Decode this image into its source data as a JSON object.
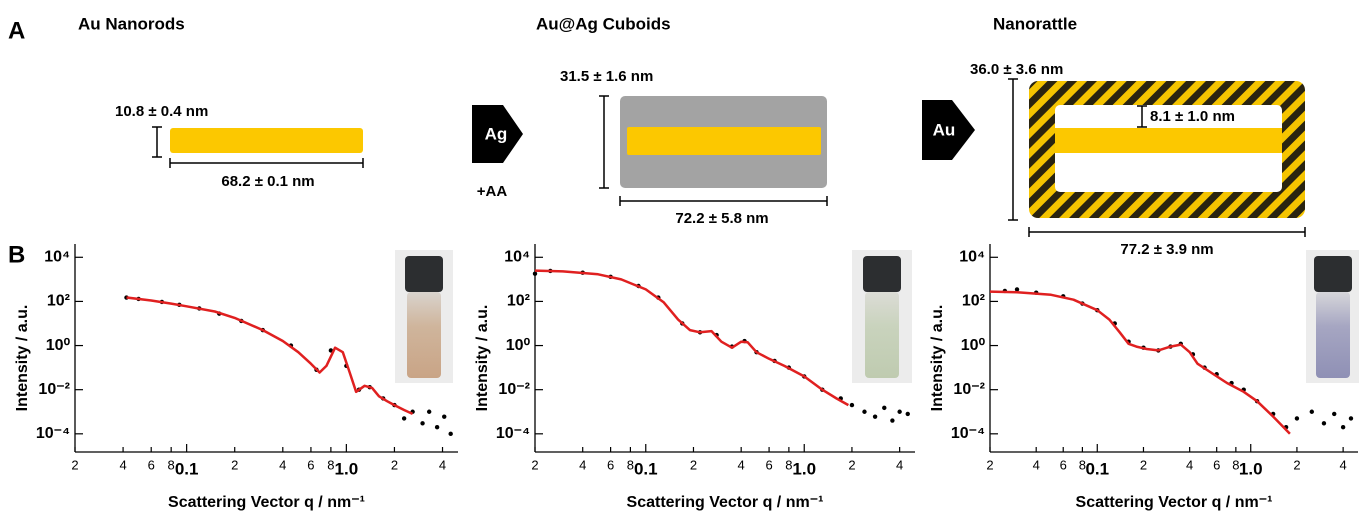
{
  "diagram": {
    "panel_label": "A",
    "steps": [
      {
        "title": "Au Nanorods",
        "height": "10.8 ± 0.4 nm",
        "length": "68.2 ± 0.1 nm"
      },
      {
        "title": "Au@Ag Cuboids",
        "height": "31.5 ± 1.6 nm",
        "length": "72.2 ± 5.8 nm"
      },
      {
        "title": "Nanorattle",
        "height": "36.0 ± 3.6 nm",
        "gap": "8.1 ± 1.0 nm",
        "length": "77.2 ± 3.9 nm"
      }
    ],
    "arrows": [
      {
        "label": "Ag",
        "note": "+AA"
      },
      {
        "label": "Au"
      }
    ],
    "panel_b_label": "B"
  },
  "chart_data": [
    {
      "type": "line",
      "xlabel": "Scattering Vector q / nm⁻¹",
      "ylabel": "Intensity / a.u.",
      "xscale": "log",
      "yscale": "log",
      "xlim": [
        0.02,
        5
      ],
      "ylim": [
        1.5e-05,
        40000
      ],
      "xticks": [
        {
          "value": 0.02,
          "label": "2"
        },
        {
          "value": 0.04,
          "label": "4"
        },
        {
          "value": 0.06,
          "label": "6"
        },
        {
          "value": 0.08,
          "label": "8"
        },
        0.1,
        {
          "value": 0.2,
          "label": "2"
        },
        {
          "value": 0.4,
          "label": "4"
        },
        {
          "value": 0.6,
          "label": "6"
        },
        {
          "value": 0.8,
          "label": "8"
        },
        {
          "value": 1,
          "label": "1.0"
        },
        {
          "value": 2,
          "label": "2"
        },
        {
          "value": 4,
          "label": "4"
        }
      ],
      "yticks": [
        {
          "value": 10000,
          "label": "10⁴"
        },
        {
          "value": 100,
          "label": "10²"
        },
        {
          "value": 1,
          "label": "10⁰"
        },
        {
          "value": 0.01,
          "label": "10⁻²"
        },
        {
          "value": 0.0001,
          "label": "10⁻⁴"
        }
      ],
      "series": [
        {
          "type": "scatter",
          "color": "#000000",
          "x": [
            0.042,
            0.05,
            0.07,
            0.09,
            0.12,
            0.16,
            0.22,
            0.3,
            0.45,
            0.65,
            0.8,
            1.0,
            1.2,
            1.4,
            1.7,
            2.0,
            2.3,
            2.6,
            3.0,
            3.3,
            3.7,
            4.1,
            4.5
          ],
          "values": [
            150,
            130,
            95,
            70,
            48,
            28,
            13,
            5,
            1,
            0.08,
            0.6,
            0.12,
            0.01,
            0.013,
            0.004,
            0.002,
            0.0005,
            0.001,
            0.0003,
            0.001,
            0.0002,
            0.0006,
            0.0001
          ]
        },
        {
          "type": "line",
          "color": "#e02020",
          "x": [
            0.042,
            0.06,
            0.08,
            0.1,
            0.15,
            0.2,
            0.3,
            0.4,
            0.5,
            0.6,
            0.68,
            0.75,
            0.85,
            0.95,
            1.05,
            1.15,
            1.3,
            1.45,
            1.6,
            1.8,
            2.0,
            2.3,
            2.6
          ],
          "values": [
            150,
            110,
            80,
            60,
            35,
            18,
            5,
            1.6,
            0.5,
            0.15,
            0.06,
            0.12,
            0.8,
            0.5,
            0.06,
            0.008,
            0.015,
            0.012,
            0.005,
            0.003,
            0.002,
            0.0012,
            0.0008
          ]
        }
      ]
    },
    {
      "type": "line",
      "xlabel": "Scattering Vector q / nm⁻¹",
      "ylabel": "Intensity / a.u.",
      "xscale": "log",
      "yscale": "log",
      "xlim": [
        0.02,
        5
      ],
      "ylim": [
        1.5e-05,
        40000
      ],
      "xticks": [
        {
          "value": 0.02,
          "label": "2"
        },
        {
          "value": 0.04,
          "label": "4"
        },
        {
          "value": 0.06,
          "label": "6"
        },
        {
          "value": 0.08,
          "label": "8"
        },
        0.1,
        {
          "value": 0.2,
          "label": "2"
        },
        {
          "value": 0.4,
          "label": "4"
        },
        {
          "value": 0.6,
          "label": "6"
        },
        {
          "value": 0.8,
          "label": "8"
        },
        {
          "value": 1,
          "label": "1.0"
        },
        {
          "value": 2,
          "label": "2"
        },
        {
          "value": 4,
          "label": "4"
        }
      ],
      "yticks": [
        {
          "value": 10000,
          "label": "10⁴"
        },
        {
          "value": 100,
          "label": "10²"
        },
        {
          "value": 1,
          "label": "10⁰"
        },
        {
          "value": 0.01,
          "label": "10⁻²"
        },
        {
          "value": 0.0001,
          "label": "10⁻⁴"
        }
      ],
      "series": [
        {
          "type": "scatter",
          "color": "#000000",
          "x": [
            0.02,
            0.025,
            0.04,
            0.06,
            0.09,
            0.12,
            0.17,
            0.22,
            0.28,
            0.35,
            0.42,
            0.5,
            0.65,
            0.8,
            1.0,
            1.3,
            1.7,
            2.0,
            2.4,
            2.8,
            3.2,
            3.6,
            4.0,
            4.5
          ],
          "values": [
            1800,
            2400,
            2000,
            1300,
            500,
            150,
            10,
            4,
            3,
            0.9,
            1.6,
            0.5,
            0.2,
            0.1,
            0.04,
            0.01,
            0.004,
            0.002,
            0.001,
            0.0006,
            0.0015,
            0.0004,
            0.001,
            0.0008
          ]
        },
        {
          "type": "line",
          "color": "#e02020",
          "x": [
            0.02,
            0.03,
            0.05,
            0.07,
            0.1,
            0.13,
            0.16,
            0.19,
            0.22,
            0.26,
            0.3,
            0.35,
            0.4,
            0.44,
            0.5,
            0.6,
            0.75,
            1.0,
            1.3,
            1.6,
            1.9
          ],
          "values": [
            2500,
            2300,
            1700,
            1000,
            350,
            90,
            15,
            5,
            4,
            4.5,
            1.5,
            0.8,
            1.5,
            1.4,
            0.5,
            0.25,
            0.12,
            0.04,
            0.01,
            0.004,
            0.002
          ]
        }
      ]
    },
    {
      "type": "line",
      "xlabel": "Scattering Vector q / nm⁻¹",
      "ylabel": "Intensity / a.u.",
      "xscale": "log",
      "yscale": "log",
      "xlim": [
        0.02,
        5
      ],
      "ylim": [
        1.5e-05,
        40000
      ],
      "xticks": [
        {
          "value": 0.02,
          "label": "2"
        },
        {
          "value": 0.04,
          "label": "4"
        },
        {
          "value": 0.06,
          "label": "6"
        },
        {
          "value": 0.08,
          "label": "8"
        },
        0.1,
        {
          "value": 0.2,
          "label": "2"
        },
        {
          "value": 0.4,
          "label": "4"
        },
        {
          "value": 0.6,
          "label": "6"
        },
        {
          "value": 0.8,
          "label": "8"
        },
        {
          "value": 1,
          "label": "1.0"
        },
        {
          "value": 2,
          "label": "2"
        },
        {
          "value": 4,
          "label": "4"
        }
      ],
      "yticks": [
        {
          "value": 10000,
          "label": "10⁴"
        },
        {
          "value": 100,
          "label": "10²"
        },
        {
          "value": 1,
          "label": "10⁰"
        },
        {
          "value": 0.01,
          "label": "10⁻²"
        },
        {
          "value": 0.0001,
          "label": "10⁻⁴"
        }
      ],
      "series": [
        {
          "type": "scatter",
          "color": "#000000",
          "x": [
            0.025,
            0.03,
            0.04,
            0.06,
            0.08,
            0.1,
            0.13,
            0.16,
            0.2,
            0.25,
            0.3,
            0.35,
            0.42,
            0.5,
            0.6,
            0.75,
            0.9,
            1.1,
            1.4,
            1.7,
            2.0,
            2.5,
            3.0,
            3.5,
            4.0,
            4.5
          ],
          "values": [
            300,
            350,
            250,
            170,
            80,
            40,
            10,
            1.5,
            0.8,
            0.6,
            0.9,
            1.2,
            0.4,
            0.1,
            0.05,
            0.02,
            0.01,
            0.003,
            0.0008,
            0.0002,
            0.0005,
            0.001,
            0.0003,
            0.0008,
            0.0002,
            0.0005
          ]
        },
        {
          "type": "line",
          "color": "#e02020",
          "x": [
            0.02,
            0.03,
            0.05,
            0.07,
            0.1,
            0.12,
            0.14,
            0.16,
            0.18,
            0.21,
            0.25,
            0.3,
            0.35,
            0.4,
            0.45,
            0.55,
            0.7,
            0.9,
            1.1,
            1.4,
            1.8
          ],
          "values": [
            280,
            260,
            200,
            120,
            40,
            15,
            4,
            1.2,
            0.9,
            0.7,
            0.6,
            0.9,
            1.1,
            0.5,
            0.15,
            0.06,
            0.02,
            0.008,
            0.003,
            0.0006,
            0.0001
          ]
        }
      ]
    }
  ]
}
